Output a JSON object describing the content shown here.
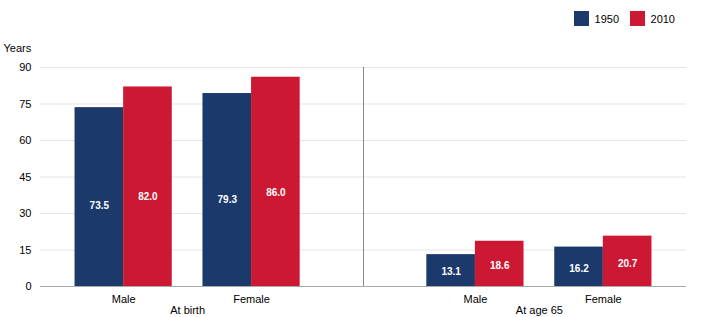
{
  "chart_data": {
    "type": "bar",
    "categories": [
      "Male",
      "Female",
      "Male",
      "Female"
    ],
    "group_labels": [
      "At birth",
      "At age 65"
    ],
    "series": [
      {
        "name": "1950",
        "color": "#1b3a6b",
        "values": [
          73.5,
          79.3,
          13.1,
          16.2
        ],
        "value_labels": [
          "73.5",
          "79.3",
          "13.1",
          "16.2"
        ]
      },
      {
        "name": "2010",
        "color": "#cc1833",
        "values": [
          82.0,
          86.0,
          18.6,
          20.7
        ],
        "value_labels": [
          "82.0",
          "86.0",
          "18.6",
          "20.7"
        ]
      }
    ],
    "ylabel": "Years",
    "ylim": [
      0,
      90
    ],
    "yticks": [
      0,
      15,
      30,
      45,
      60,
      75,
      90
    ],
    "grid": true,
    "legend": "upper right",
    "data_labels": true
  }
}
